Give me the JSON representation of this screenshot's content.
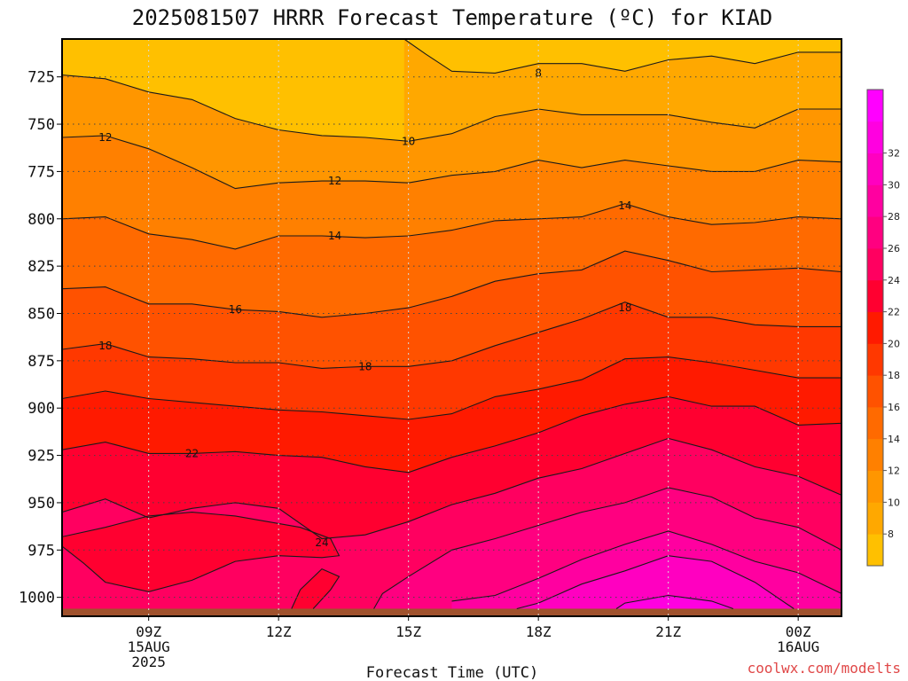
{
  "chart_data": {
    "type": "heatmap",
    "title": "2025081507 HRRR Forecast Temperature (ºC) for KIAD",
    "xlabel": "Forecast Time (UTC)",
    "ylabel": "",
    "x_ticks": [
      {
        "hour": 9,
        "lines": [
          "09Z",
          "15AUG",
          "2025"
        ]
      },
      {
        "hour": 12,
        "lines": [
          "12Z"
        ]
      },
      {
        "hour": 15,
        "lines": [
          "15Z"
        ]
      },
      {
        "hour": 18,
        "lines": [
          "18Z"
        ]
      },
      {
        "hour": 21,
        "lines": [
          "21Z"
        ]
      },
      {
        "hour": 24,
        "lines": [
          "00Z",
          "16AUG"
        ]
      }
    ],
    "xlim": [
      7.0,
      25.0
    ],
    "y_ticks": [
      "725",
      "750",
      "775",
      "800",
      "825",
      "850",
      "875",
      "900",
      "925",
      "950",
      "975",
      "1000"
    ],
    "ylim": [
      1010,
      705
    ],
    "grid": true,
    "colorbar": {
      "position": "right",
      "ticks": [
        "8",
        "10",
        "12",
        "14",
        "16",
        "18",
        "20",
        "22",
        "24",
        "26",
        "28",
        "30",
        "32"
      ],
      "levels": [
        6,
        8,
        10,
        12,
        14,
        16,
        18,
        20,
        22,
        24,
        26,
        28,
        30,
        32,
        34
      ],
      "colors": [
        "#ffc000",
        "#ffa800",
        "#ff9600",
        "#ff8000",
        "#ff6a00",
        "#ff5200",
        "#ff3800",
        "#ff1a00",
        "#ff0030",
        "#ff0060",
        "#ff0080",
        "#ff00a0",
        "#ff00c0",
        "#ff00e0",
        "#ff00ff"
      ]
    },
    "surface_pressure_hpa": 1006,
    "surface_color": "#a0522d",
    "series": [
      {
        "level": 8,
        "x": [
          14.9,
          15.4,
          16.0,
          17.0,
          18.0,
          19.0,
          20.0,
          21.0,
          22.0,
          23.0,
          24.0,
          25.0
        ],
        "y": [
          705,
          713,
          722,
          723,
          718,
          718,
          722,
          716,
          714,
          718,
          712,
          712
        ]
      },
      {
        "level": 10,
        "x": [
          7.0,
          8.0,
          9.0,
          10.0,
          11.0,
          12.0,
          13.0,
          14.0,
          15.0,
          16.0,
          17.0,
          18.0,
          19.0,
          20.0,
          21.0,
          22.0,
          23.0,
          24.0,
          25.0
        ],
        "y": [
          724,
          726,
          733,
          737,
          747,
          753,
          756,
          757,
          759,
          755,
          746,
          742,
          745,
          745,
          745,
          749,
          752,
          742,
          742
        ]
      },
      {
        "level": 12,
        "x": [
          7.0,
          8.0,
          9.0,
          10.0,
          11.0,
          12.0,
          13.0,
          14.0,
          15.0,
          16.0,
          17.0,
          18.0,
          19.0,
          20.0,
          21.0,
          22.0,
          23.0,
          24.0,
          25.0
        ],
        "y": [
          757,
          756,
          763,
          773,
          784,
          781,
          780,
          780,
          781,
          777,
          775,
          769,
          773,
          769,
          772,
          775,
          775,
          769,
          770
        ]
      },
      {
        "level": 14,
        "x": [
          7.0,
          8.0,
          9.0,
          10.0,
          11.0,
          12.0,
          13.0,
          14.0,
          15.0,
          16.0,
          17.0,
          18.0,
          19.0,
          20.0,
          21.0,
          22.0,
          23.0,
          24.0,
          25.0
        ],
        "y": [
          800,
          799,
          808,
          811,
          816,
          809,
          809,
          810,
          809,
          806,
          801,
          800,
          799,
          792,
          799,
          803,
          802,
          799,
          800
        ]
      },
      {
        "level": 16,
        "x": [
          7.0,
          8.0,
          9.0,
          10.0,
          11.0,
          12.0,
          13.0,
          14.0,
          15.0,
          16.0,
          17.0,
          18.0,
          19.0,
          20.0,
          21.0,
          22.0,
          23.0,
          24.0,
          25.0
        ],
        "y": [
          837,
          836,
          845,
          845,
          848,
          849,
          852,
          850,
          847,
          841,
          833,
          829,
          827,
          817,
          822,
          828,
          827,
          826,
          828
        ]
      },
      {
        "level": 18,
        "x": [
          7.0,
          8.0,
          9.0,
          10.0,
          11.0,
          12.0,
          13.0,
          14.0,
          15.0,
          16.0,
          17.0,
          18.0,
          19.0,
          20.0,
          21.0,
          22.0,
          23.0,
          24.0,
          25.0
        ],
        "y": [
          869,
          866,
          873,
          874,
          876,
          876,
          879,
          878,
          878,
          875,
          867,
          860,
          853,
          844,
          852,
          852,
          856,
          857,
          857
        ]
      },
      {
        "level": 20,
        "x": [
          7.0,
          8.0,
          9.0,
          10.0,
          11.0,
          12.0,
          13.0,
          14.0,
          15.0,
          16.0,
          17.0,
          18.0,
          19.0,
          20.0,
          21.0,
          22.0,
          23.0,
          24.0,
          25.0
        ],
        "y": [
          895,
          891,
          895,
          897,
          899,
          901,
          902,
          904,
          906,
          903,
          894,
          890,
          885,
          874,
          873,
          876,
          880,
          884,
          884
        ]
      },
      {
        "level": 22,
        "x": [
          7.0,
          8.0,
          9.0,
          10.0,
          11.0,
          12.0,
          13.0,
          14.0,
          15.0,
          16.0,
          17.0,
          18.0,
          19.0,
          20.0,
          21.0,
          22.0,
          23.0,
          24.0,
          25.0
        ],
        "y": [
          922,
          918,
          924,
          924,
          923,
          925,
          926,
          931,
          934,
          926,
          920,
          913,
          904,
          898,
          894,
          899,
          899,
          909,
          908
        ]
      },
      {
        "level": 24,
        "x": [
          7.0,
          8.0,
          9.0,
          10.0,
          11.0,
          12.0,
          13.0,
          14.0,
          15.0,
          16.0,
          17.0,
          18.0,
          19.0,
          20.0,
          21.0,
          22.0,
          23.0,
          24.0,
          25.0
        ],
        "y": [
          955,
          948,
          958,
          953,
          950,
          953,
          969,
          967,
          960,
          951,
          945,
          937,
          932,
          924,
          916,
          922,
          931,
          936,
          946
        ]
      },
      {
        "level": 26,
        "x": [
          14.2,
          14.4,
          15.0,
          16.0,
          17.0,
          18.0,
          19.0,
          20.0,
          21.0,
          22.0,
          23.0,
          24.0,
          25.0
        ],
        "y": [
          1006,
          998,
          989,
          975,
          969,
          962,
          955,
          950,
          942,
          947,
          958,
          963,
          975
        ]
      },
      {
        "level": 28,
        "x": [
          16.0,
          17.0,
          18.0,
          19.0,
          20.0,
          21.0,
          22.0,
          23.0,
          24.0,
          25.0
        ],
        "y": [
          1002,
          999,
          990,
          980,
          972,
          965,
          972,
          981,
          987,
          998
        ]
      },
      {
        "level": 30,
        "x": [
          17.5,
          18.0,
          19.0,
          20.0,
          21.0,
          22.0,
          23.0,
          23.9
        ],
        "y": [
          1006,
          1003,
          993,
          986,
          978,
          981,
          992,
          1006
        ]
      },
      {
        "level": 32,
        "x": [
          19.8,
          20.0,
          21.0,
          22.0,
          22.5
        ],
        "y": [
          1006,
          1003,
          999,
          1002,
          1006
        ]
      },
      {
        "level": 24,
        "x": [
          7.0,
          7.5,
          8.0,
          9.0,
          10.0,
          11.0,
          12.0,
          13.0,
          13.4,
          13.2,
          12.5,
          12.0,
          11.0,
          10.0,
          9.0,
          8.0,
          7.0
        ],
        "y": [
          973,
          982,
          992,
          997,
          991,
          981,
          978,
          979,
          978,
          969,
          963,
          961,
          957,
          955,
          957,
          963,
          968
        ]
      },
      {
        "level": 24,
        "x": [
          12.8,
          13.2,
          13.4,
          13.0,
          12.5,
          12.3
        ],
        "y": [
          1006,
          996,
          989,
          985,
          996,
          1006
        ]
      }
    ],
    "contour_labels": [
      {
        "text": "8",
        "x": 18.0,
        "y": 723
      },
      {
        "text": "10",
        "x": 15.0,
        "y": 759
      },
      {
        "text": "12",
        "x": 8.0,
        "y": 757
      },
      {
        "text": "12",
        "x": 13.3,
        "y": 780
      },
      {
        "text": "14",
        "x": 13.3,
        "y": 809
      },
      {
        "text": "14",
        "x": 20.0,
        "y": 793
      },
      {
        "text": "16",
        "x": 11.0,
        "y": 848
      },
      {
        "text": "18",
        "x": 8.0,
        "y": 867
      },
      {
        "text": "18",
        "x": 14.0,
        "y": 878
      },
      {
        "text": "18",
        "x": 20.0,
        "y": 847
      },
      {
        "text": "22",
        "x": 10.0,
        "y": 924
      },
      {
        "text": "24",
        "x": 13.0,
        "y": 971
      }
    ]
  },
  "credit": "coolwx.com/modelts"
}
